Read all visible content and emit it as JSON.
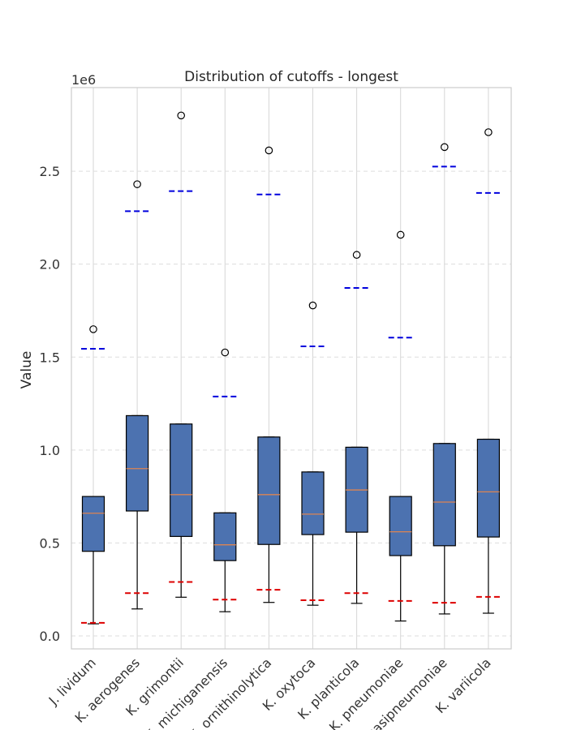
{
  "chart_data": {
    "type": "box",
    "title": "Distribution of cutoffs - longest",
    "ylabel": "Value",
    "xlabel": "",
    "y_offset_label": "1e6",
    "ylim": [
      -70000,
      2950000
    ],
    "yticks": [
      0.0,
      0.5,
      1.0,
      1.5,
      2.0,
      2.5
    ],
    "y_scale": 1000000,
    "grid": true,
    "colors": {
      "box_fill": "#4c72b0",
      "median": "#dd8452",
      "lower_cutoff": "#dd0000",
      "upper_cutoff": "#0000dd",
      "grid": "#dddddd"
    },
    "categories": [
      "J. lividum",
      "K. aerogenes",
      "K. grimontii",
      "K. michiganensis",
      "K. ornithinolytica",
      "K. oxytoca",
      "K. planticola",
      "K. pneumoniae",
      "K. quasipneumoniae",
      "K. variicola"
    ],
    "boxes": [
      {
        "whislo": 65000,
        "q1": 455000,
        "med": 660000,
        "q3": 750000,
        "whishi": 750000,
        "fliers": [
          1650000
        ],
        "lower_cutoff": 70000,
        "upper_cutoff": 1545000
      },
      {
        "whislo": 145000,
        "q1": 672000,
        "med": 900000,
        "q3": 1185000,
        "whishi": 1185000,
        "fliers": [
          2430000
        ],
        "lower_cutoff": 230000,
        "upper_cutoff": 2285000
      },
      {
        "whislo": 208000,
        "q1": 535000,
        "med": 760000,
        "q3": 1140000,
        "whishi": 1140000,
        "fliers": [
          2800000
        ],
        "lower_cutoff": 290000,
        "upper_cutoff": 2393000
      },
      {
        "whislo": 130000,
        "q1": 405000,
        "med": 490000,
        "q3": 662000,
        "whishi": 662000,
        "fliers": [
          1525000
        ],
        "lower_cutoff": 195000,
        "upper_cutoff": 1288000
      },
      {
        "whislo": 180000,
        "q1": 492000,
        "med": 760000,
        "q3": 1070000,
        "whishi": 1070000,
        "fliers": [
          2612000
        ],
        "lower_cutoff": 248000,
        "upper_cutoff": 2375000
      },
      {
        "whislo": 165000,
        "q1": 545000,
        "med": 655000,
        "q3": 882000,
        "whishi": 882000,
        "fliers": [
          1778000
        ],
        "lower_cutoff": 192000,
        "upper_cutoff": 1558000
      },
      {
        "whislo": 175000,
        "q1": 558000,
        "med": 785000,
        "q3": 1015000,
        "whishi": 1015000,
        "fliers": [
          2050000
        ],
        "lower_cutoff": 230000,
        "upper_cutoff": 1872000
      },
      {
        "whislo": 80000,
        "q1": 432000,
        "med": 560000,
        "q3": 750000,
        "whishi": 750000,
        "fliers": [
          2158000
        ],
        "lower_cutoff": 188000,
        "upper_cutoff": 1605000
      },
      {
        "whislo": 118000,
        "q1": 485000,
        "med": 720000,
        "q3": 1035000,
        "whishi": 1035000,
        "fliers": [
          2630000
        ],
        "lower_cutoff": 178000,
        "upper_cutoff": 2525000
      },
      {
        "whislo": 122000,
        "q1": 532000,
        "med": 775000,
        "q3": 1058000,
        "whishi": 1058000,
        "fliers": [
          2710000
        ],
        "lower_cutoff": 210000,
        "upper_cutoff": 2383000
      }
    ]
  }
}
